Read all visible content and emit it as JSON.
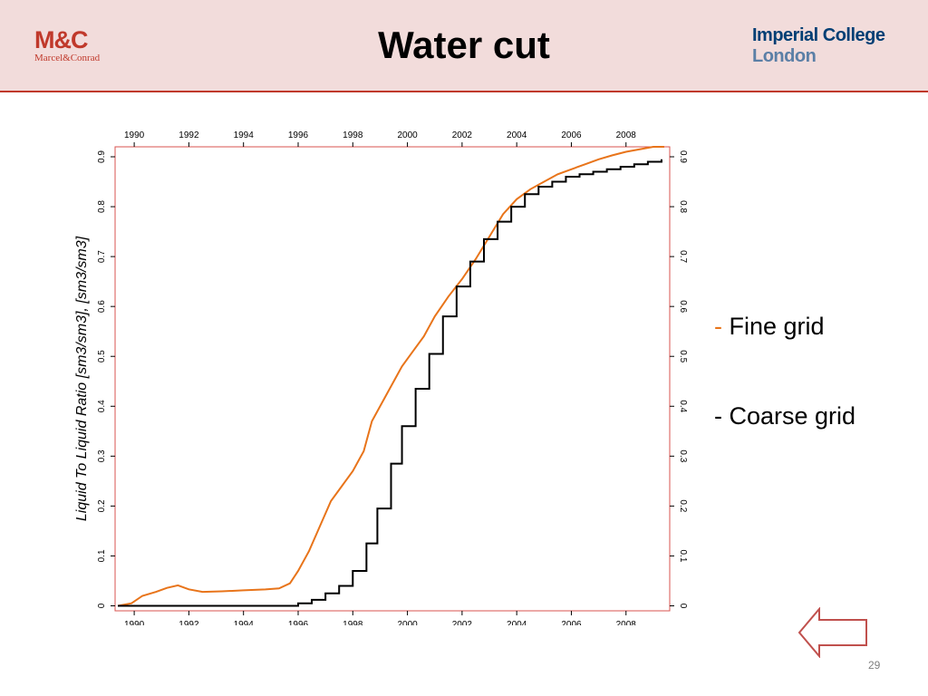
{
  "header": {
    "logo_left_main": "M&C",
    "logo_left_sub": "Marcel&Conrad",
    "title": "Water cut",
    "logo_right_line1": "Imperial College",
    "logo_right_line2": "London"
  },
  "legend": {
    "fine_dash": "-",
    "fine_label": "Fine grid",
    "coarse_label": "- Coarse grid"
  },
  "footer": {
    "page_number": "29"
  },
  "nav": {
    "back_icon": "left-arrow-icon"
  },
  "colors": {
    "accent": "#c0392b",
    "header_bg": "#f2dcdb",
    "fine": "#e8741a",
    "coarse": "#000000"
  },
  "chart_data": {
    "type": "line",
    "ylabel": "Liquid To Liquid Ratio [sm3/sm3], [sm3/sm3]",
    "xlim": [
      1989.3,
      2009.6
    ],
    "ylim": [
      -0.01,
      0.92
    ],
    "x_ticks": [
      1990,
      1992,
      1994,
      1996,
      1998,
      2000,
      2002,
      2004,
      2006,
      2008
    ],
    "y_ticks": [
      "0",
      "0.1",
      "0.2",
      "0.3",
      "0.4",
      "0.5",
      "0.6",
      "0.7",
      "0.8",
      "0.9"
    ],
    "y_tick_values": [
      0,
      0.1,
      0.2,
      0.3,
      0.4,
      0.5,
      0.6,
      0.7,
      0.8,
      0.9
    ],
    "grid": false,
    "series": [
      {
        "key": "fine",
        "step": false,
        "x": [
          1989.4,
          1989.9,
          1990.3,
          1990.8,
          1991.2,
          1991.6,
          1992.0,
          1992.5,
          1993.2,
          1994.0,
          1994.8,
          1995.3,
          1995.7,
          1996.0,
          1996.4,
          1996.8,
          1997.2,
          1997.6,
          1998.0,
          1998.4,
          1998.7,
          1999.0,
          1999.4,
          1999.8,
          2000.2,
          2000.6,
          2001.0,
          2001.5,
          2002.0,
          2002.5,
          2003.0,
          2003.5,
          2004.0,
          2004.5,
          2005.0,
          2005.5,
          2006.0,
          2006.5,
          2007.0,
          2007.5,
          2008.0,
          2008.5,
          2009.0,
          2009.4
        ],
        "y": [
          0.0,
          0.005,
          0.02,
          0.028,
          0.036,
          0.041,
          0.033,
          0.028,
          0.029,
          0.031,
          0.033,
          0.035,
          0.045,
          0.07,
          0.11,
          0.16,
          0.21,
          0.24,
          0.27,
          0.31,
          0.37,
          0.4,
          0.44,
          0.48,
          0.51,
          0.54,
          0.58,
          0.62,
          0.655,
          0.695,
          0.74,
          0.785,
          0.815,
          0.835,
          0.85,
          0.865,
          0.875,
          0.885,
          0.895,
          0.903,
          0.91,
          0.915,
          0.92,
          0.92
        ]
      },
      {
        "key": "coarse",
        "step": true,
        "x": [
          1989.4,
          1995.0,
          1996.0,
          1996.5,
          1997.0,
          1997.5,
          1998.0,
          1998.5,
          1998.9,
          1999.4,
          1999.8,
          2000.3,
          2000.8,
          2001.3,
          2001.8,
          2002.3,
          2002.8,
          2003.3,
          2003.8,
          2004.3,
          2004.8,
          2005.3,
          2005.8,
          2006.3,
          2006.8,
          2007.3,
          2007.8,
          2008.3,
          2008.8,
          2009.3
        ],
        "y": [
          0.0,
          0.0,
          0.005,
          0.012,
          0.025,
          0.04,
          0.07,
          0.125,
          0.195,
          0.285,
          0.36,
          0.435,
          0.505,
          0.58,
          0.64,
          0.69,
          0.735,
          0.77,
          0.8,
          0.825,
          0.84,
          0.85,
          0.86,
          0.865,
          0.87,
          0.875,
          0.88,
          0.885,
          0.89,
          0.895
        ]
      }
    ]
  }
}
